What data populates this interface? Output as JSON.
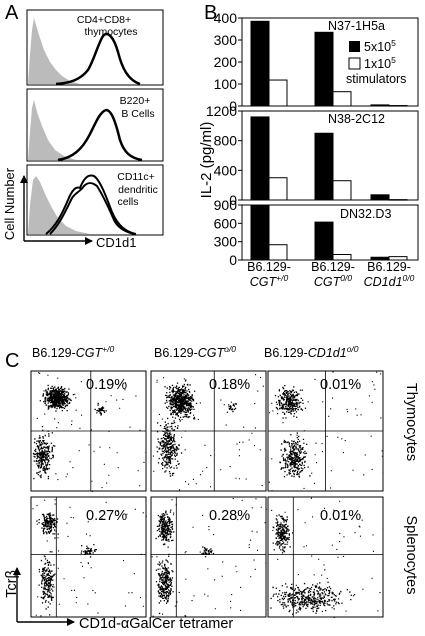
{
  "panel_labels": {
    "a": "A",
    "b": "B",
    "c": "C"
  },
  "panel_a": {
    "ylabel": "Cell Number",
    "xlabel": "CD1d1",
    "histograms": [
      {
        "lines": [
          "CD4+CD8+",
          "thymocytes"
        ]
      },
      {
        "lines": [
          "B220+",
          "B Cells"
        ]
      },
      {
        "lines": [
          "CD11c+",
          "dendritic",
          "cells"
        ]
      }
    ]
  },
  "chart_data": [
    {
      "type": "bar",
      "title": "N37-1H5a",
      "ylabel": "IL-2 (pg/ml)",
      "ylim": [
        0,
        400
      ],
      "yticks": [
        0,
        100,
        200,
        300,
        400
      ],
      "categories": [
        "B6.129-CGT+/0",
        "B6.129-CGT0/0",
        "B6.129-CD1d10/0"
      ],
      "series": [
        {
          "name": "5x10^5",
          "values": [
            385,
            335,
            5
          ]
        },
        {
          "name": "1x10^5 stimulators",
          "values": [
            118,
            65,
            2
          ]
        }
      ]
    },
    {
      "type": "bar",
      "title": "N38-2C12",
      "ylim": [
        0,
        1200
      ],
      "yticks": [
        0,
        400,
        800,
        1200
      ],
      "categories": [
        "B6.129-CGT+/0",
        "B6.129-CGT0/0",
        "B6.129-CD1d10/0"
      ],
      "series": [
        {
          "name": "5x10^5",
          "values": [
            1120,
            900,
            70
          ]
        },
        {
          "name": "1x10^5 stimulators",
          "values": [
            300,
            260,
            5
          ]
        }
      ]
    },
    {
      "type": "bar",
      "title": "DN32.D3",
      "ylim": [
        0,
        900
      ],
      "yticks": [
        0,
        300,
        600,
        900
      ],
      "categories": [
        "B6.129-CGT+/0",
        "B6.129-CGT0/0",
        "B6.129-CD1d10/0"
      ],
      "series": [
        {
          "name": "5x10^5",
          "values": [
            1000,
            620,
            45
          ]
        },
        {
          "name": "1x10^5 stimulators",
          "values": [
            250,
            90,
            55
          ]
        }
      ]
    }
  ],
  "panel_b": {
    "ylabel": "IL-2 (pg/ml)",
    "legend": {
      "item1_base": "5x10",
      "item1_exp": "5",
      "item2_base": "1x10",
      "item2_exp": "5",
      "item2_line2": "stimulators"
    },
    "categories": [
      {
        "prefix": "B6.129-",
        "gene": "CGT",
        "sup": "+/0"
      },
      {
        "prefix": "B6.129-",
        "gene": "CGT",
        "sup": "0/0"
      },
      {
        "prefix": "B6.129-",
        "gene": "CD1d1",
        "sup": "0/0"
      }
    ]
  },
  "panel_c": {
    "columns": [
      {
        "prefix": "B6.129-",
        "gene": "CGT",
        "sup": "+/0"
      },
      {
        "prefix": "B6.129-",
        "gene": "CGT",
        "sup": "o/0"
      },
      {
        "prefix": "B6.129-",
        "gene": "CD1d1",
        "sup": "o/0"
      }
    ],
    "rows": [
      {
        "label": "Thymocytes",
        "percents": [
          "0.19%",
          "0.18%",
          "0.01%"
        ]
      },
      {
        "label": "Splenocytes",
        "percents": [
          "0.27%",
          "0.28%",
          "0.01%"
        ]
      }
    ],
    "ylabel": "Tcrβ",
    "xlabel": "CD1d-αGalCer tetramer"
  }
}
